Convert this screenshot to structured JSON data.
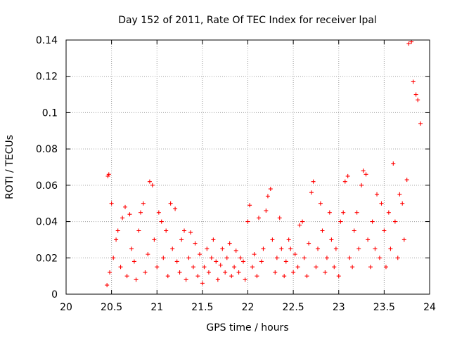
{
  "chart_data": {
    "type": "scatter",
    "title": "Day 152 of 2011, Rate Of TEC Index for receiver lpal",
    "xlabel": "GPS time / hours",
    "ylabel": "ROTI / TECUs",
    "xlim": [
      20,
      24
    ],
    "ylim": [
      0,
      0.14
    ],
    "x_ticks": [
      "20",
      "20.5",
      "21",
      "21.5",
      "22",
      "22.5",
      "23",
      "23.5",
      "24"
    ],
    "y_ticks": [
      "0",
      "0.02",
      "0.04",
      "0.06",
      "0.08",
      "0.1",
      "0.12",
      "0.14"
    ],
    "grid": true,
    "marker": "plus",
    "color": "#ff0000",
    "series": [
      {
        "x": [
          20.45,
          20.46,
          20.47,
          20.48,
          20.5,
          20.52,
          20.55,
          20.57,
          20.6,
          20.62,
          20.65,
          20.67,
          20.7,
          20.72,
          20.75,
          20.77,
          20.8,
          20.82,
          20.85,
          20.87,
          20.9,
          20.92,
          20.95,
          20.97,
          21.0,
          21.02,
          21.05,
          21.07,
          21.1,
          21.12,
          21.15,
          21.17,
          21.2,
          21.22,
          21.25,
          21.27,
          21.3,
          21.32,
          21.35,
          21.37,
          21.4,
          21.42,
          21.45,
          21.47,
          21.5,
          21.52,
          21.55,
          21.57,
          21.6,
          21.62,
          21.65,
          21.67,
          21.7,
          21.72,
          21.75,
          21.77,
          21.8,
          21.82,
          21.85,
          21.87,
          21.9,
          21.92,
          21.95,
          21.97,
          22.0,
          22.02,
          22.05,
          22.07,
          22.1,
          22.12,
          22.15,
          22.17,
          22.2,
          22.22,
          22.25,
          22.27,
          22.3,
          22.32,
          22.35,
          22.37,
          22.4,
          22.42,
          22.45,
          22.47,
          22.5,
          22.52,
          22.55,
          22.57,
          22.6,
          22.62,
          22.65,
          22.67,
          22.7,
          22.72,
          22.75,
          22.77,
          22.8,
          22.82,
          22.85,
          22.87,
          22.9,
          22.92,
          22.95,
          22.97,
          23.0,
          23.02,
          23.05,
          23.07,
          23.1,
          23.12,
          23.15,
          23.17,
          23.2,
          23.22,
          23.25,
          23.27,
          23.3,
          23.32,
          23.35,
          23.37,
          23.4,
          23.42,
          23.45,
          23.47,
          23.5,
          23.52,
          23.55,
          23.57,
          23.6,
          23.62,
          23.65,
          23.67,
          23.7,
          23.72,
          23.75,
          23.77,
          23.8,
          23.82,
          23.85,
          23.87,
          23.9
        ],
        "y": [
          0.005,
          0.065,
          0.066,
          0.012,
          0.05,
          0.02,
          0.03,
          0.035,
          0.015,
          0.042,
          0.048,
          0.01,
          0.044,
          0.025,
          0.018,
          0.008,
          0.035,
          0.045,
          0.05,
          0.012,
          0.022,
          0.062,
          0.06,
          0.03,
          0.015,
          0.045,
          0.04,
          0.02,
          0.035,
          0.01,
          0.05,
          0.025,
          0.047,
          0.018,
          0.012,
          0.03,
          0.035,
          0.008,
          0.02,
          0.034,
          0.015,
          0.028,
          0.01,
          0.022,
          0.006,
          0.015,
          0.025,
          0.012,
          0.02,
          0.03,
          0.018,
          0.008,
          0.016,
          0.025,
          0.012,
          0.02,
          0.028,
          0.01,
          0.015,
          0.024,
          0.012,
          0.02,
          0.018,
          0.008,
          0.04,
          0.049,
          0.015,
          0.022,
          0.01,
          0.042,
          0.018,
          0.025,
          0.046,
          0.054,
          0.058,
          0.03,
          0.012,
          0.02,
          0.042,
          0.025,
          0.01,
          0.018,
          0.03,
          0.025,
          0.012,
          0.022,
          0.015,
          0.038,
          0.04,
          0.02,
          0.01,
          0.028,
          0.056,
          0.062,
          0.015,
          0.025,
          0.05,
          0.035,
          0.012,
          0.02,
          0.045,
          0.03,
          0.015,
          0.025,
          0.01,
          0.04,
          0.045,
          0.062,
          0.065,
          0.02,
          0.015,
          0.035,
          0.045,
          0.025,
          0.06,
          0.068,
          0.066,
          0.03,
          0.015,
          0.04,
          0.025,
          0.055,
          0.02,
          0.05,
          0.035,
          0.015,
          0.045,
          0.025,
          0.072,
          0.04,
          0.02,
          0.055,
          0.05,
          0.03,
          0.063,
          0.138,
          0.139,
          0.117,
          0.11,
          0.107,
          0.094
        ]
      }
    ]
  }
}
